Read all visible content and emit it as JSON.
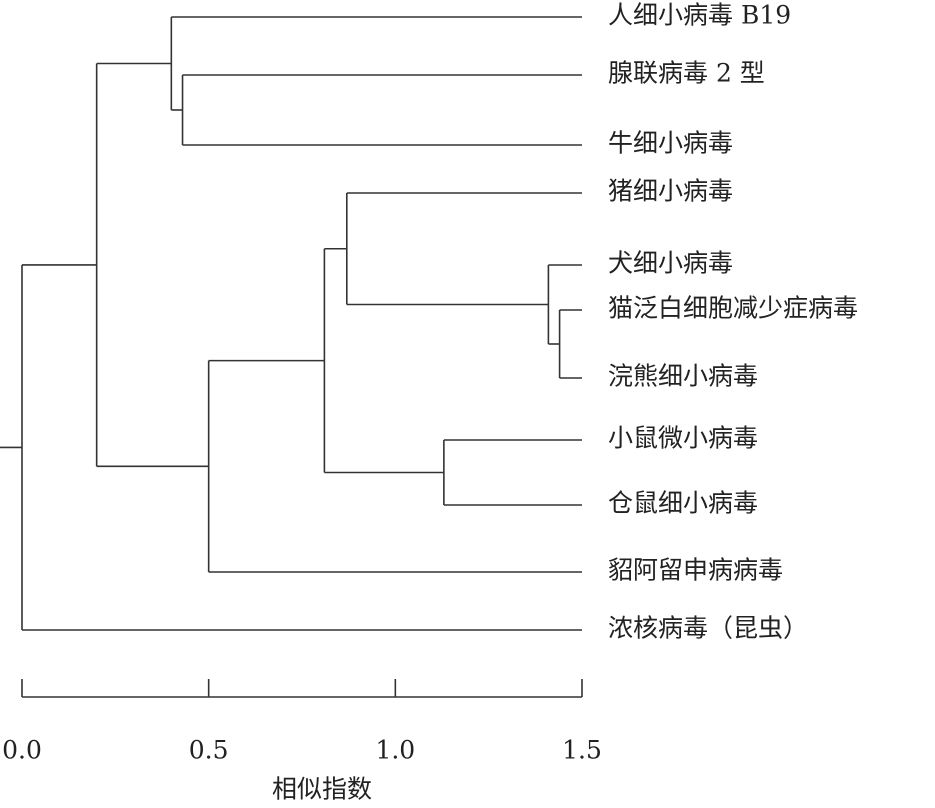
{
  "chart_data": {
    "type": "dendrogram",
    "x_label": "相似指数",
    "leaves": [
      "人细小病毒 B19",
      "腺联病毒 2 型",
      "牛细小病毒",
      "猪细小病毒",
      "犬细小病毒",
      "猫泛白细胞减少症病毒",
      "浣熊细小病毒",
      "小鼠微小病毒",
      "仓鼠细小病毒",
      "貂阿留申病病毒",
      "浓核病毒（昆虫）"
    ],
    "merges": [
      {
        "children": [
          1,
          2
        ],
        "height": 0.43
      },
      {
        "children": [
          0,
          11
        ],
        "height": 0.4
      },
      {
        "children": [
          5,
          6
        ],
        "height": 1.44
      },
      {
        "children": [
          4,
          13
        ],
        "height": 1.41
      },
      {
        "children": [
          3,
          14
        ],
        "height": 0.87
      },
      {
        "children": [
          7,
          8
        ],
        "height": 1.13
      },
      {
        "children": [
          15,
          16
        ],
        "height": 0.81
      },
      {
        "children": [
          17,
          9
        ],
        "height": 0.5
      },
      {
        "children": [
          12,
          18
        ],
        "height": 0.2
      },
      {
        "children": [
          19,
          10
        ],
        "height": 0.0
      }
    ],
    "xlim": [
      0,
      1.5
    ],
    "xticks": [
      {
        "value": 0,
        "label": "0.0"
      },
      0.5,
      {
        "value": 1,
        "label": "1.0"
      },
      1.5
    ]
  }
}
